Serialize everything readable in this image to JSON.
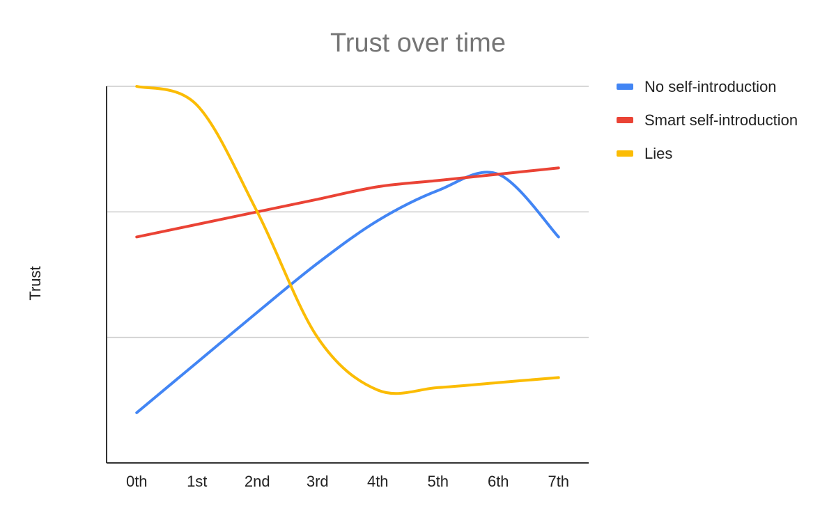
{
  "chart_data": {
    "type": "line",
    "title": "Trust over time",
    "xlabel": "",
    "ylabel": "Trust",
    "categories": [
      "0th",
      "1st",
      "2nd",
      "3rd",
      "4th",
      "5th",
      "6th",
      "7th"
    ],
    "ylim": [
      0,
      3
    ],
    "y_tick_labels_shown": false,
    "grid": true,
    "legend_position": "right",
    "smooth": true,
    "series": [
      {
        "name": "No self-introduction",
        "color": "#4285f4",
        "values": [
          0.4,
          0.8,
          1.2,
          1.59,
          1.93,
          2.17,
          2.3,
          1.8
        ]
      },
      {
        "name": "Smart self-introduction",
        "color": "#ea4335",
        "values": [
          1.8,
          1.9,
          2.0,
          2.1,
          2.2,
          2.25,
          2.3,
          2.35
        ]
      },
      {
        "name": "Lies",
        "color": "#fbbc04",
        "values": [
          3.0,
          2.85,
          2.0,
          1.0,
          0.58,
          0.6,
          0.64,
          0.68
        ]
      }
    ]
  }
}
